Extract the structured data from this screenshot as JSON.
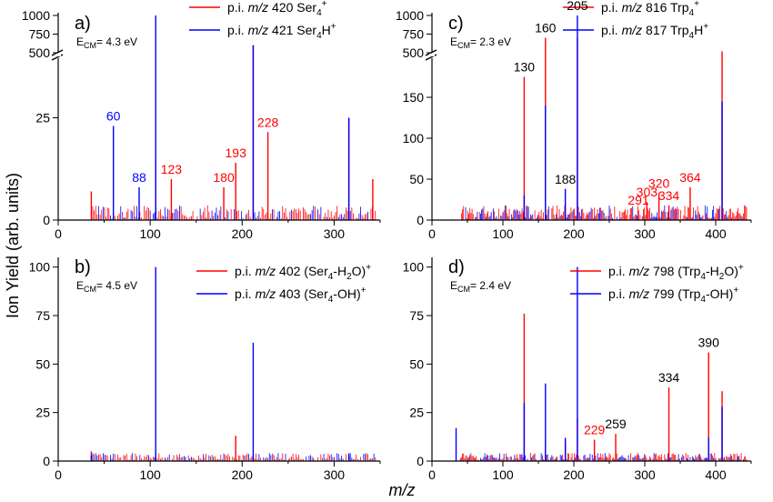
{
  "ylabel": "Ion Yield (arb. units)",
  "xlabel": "m/z",
  "colors": {
    "red": "#ff0000",
    "blue": "#0000ff"
  },
  "chart_data": [
    {
      "type": "bar",
      "panel": "a)",
      "ecm": "E CM= 4.3 eV",
      "ecm_main": "E",
      "ecm_sub": "CM",
      "ecm_rest": "= 4.3 eV",
      "xlim": [
        0,
        350
      ],
      "ylim_lower": [
        0,
        40
      ],
      "ylim_upper": [
        500,
        1000
      ],
      "xticks": [
        "0",
        "100",
        "200",
        "300"
      ],
      "yticks_lower": [
        "0",
        "25"
      ],
      "yticks_upper": [
        "500",
        "750",
        "1000"
      ],
      "legend": [
        {
          "prefix": "p.i. ",
          "mz": "m/z",
          "rest": " 420 Ser",
          "sub": "4",
          "sup": "+",
          "color": "red"
        },
        {
          "prefix": "p.i. ",
          "mz": "m/z",
          "rest": " 421 Ser",
          "sub": "4",
          "tail": "H",
          "sup": "+",
          "color": "blue"
        }
      ],
      "series": [
        {
          "name": "p.i. m/z 420 Ser4+",
          "color": "red",
          "x": [
            36,
            106,
            123,
            180,
            193,
            212,
            228,
            316,
            342
          ],
          "y": [
            7,
            15,
            10,
            8,
            14,
            600,
            21.5,
            25,
            10
          ]
        },
        {
          "name": "p.i. m/z 421 Ser4H+",
          "color": "blue",
          "x": [
            60,
            88,
            106,
            212,
            316
          ],
          "y": [
            23,
            8,
            1000,
            600,
            25
          ]
        }
      ],
      "annotations": [
        {
          "text": "60",
          "x": 60,
          "y": 23,
          "color": "blue"
        },
        {
          "text": "88",
          "x": 88,
          "y": 8,
          "color": "blue"
        },
        {
          "text": "123",
          "x": 123,
          "y": 10,
          "color": "red"
        },
        {
          "text": "180",
          "x": 180,
          "y": 8,
          "color": "red"
        },
        {
          "text": "193",
          "x": 193,
          "y": 14,
          "color": "red"
        },
        {
          "text": "228",
          "x": 228,
          "y": 21.5,
          "color": "red"
        }
      ]
    },
    {
      "type": "bar",
      "panel": "c)",
      "ecm_main": "E",
      "ecm_sub": "CM",
      "ecm_rest": "= 2.3 eV",
      "xlim": [
        0,
        450
      ],
      "ylim_lower": [
        0,
        200
      ],
      "ylim_upper": [
        500,
        1000
      ],
      "xticks": [
        "0",
        "100",
        "200",
        "300",
        "400"
      ],
      "yticks_lower": [
        "0",
        "50",
        "100",
        "150"
      ],
      "yticks_upper": [
        "500",
        "750",
        "1000"
      ],
      "legend": [
        {
          "prefix": "p.i. ",
          "mz": "m/z",
          "rest": " 816 Trp",
          "sub": "4",
          "sup": "+",
          "color": "red"
        },
        {
          "prefix": "p.i. ",
          "mz": "m/z",
          "rest": " 817 Trp",
          "sub": "4",
          "tail": "H",
          "sup": "+",
          "color": "blue"
        }
      ],
      "series": [
        {
          "name": "p.i. m/z 816 Trp4+",
          "color": "red",
          "x": [
            130,
            160,
            205,
            291,
            303,
            320,
            334,
            364,
            409
          ],
          "y": [
            175,
            700,
            700,
            12,
            22,
            33,
            18,
            40,
            520
          ]
        },
        {
          "name": "p.i. m/z 817 Trp4H+",
          "color": "blue",
          "x": [
            130,
            160,
            188,
            205,
            409
          ],
          "y": [
            30,
            140,
            38,
            1000,
            145
          ]
        }
      ],
      "annotations": [
        {
          "text": "205",
          "x": 205,
          "y": 1000,
          "color": "black"
        },
        {
          "text": "160",
          "x": 160,
          "y": 700,
          "color": "black"
        },
        {
          "text": "130",
          "x": 130,
          "y": 175,
          "color": "black"
        },
        {
          "text": "188",
          "x": 188,
          "y": 38,
          "color": "black"
        },
        {
          "text": "291",
          "x": 291,
          "y": 12,
          "color": "red"
        },
        {
          "text": "303",
          "x": 303,
          "y": 22,
          "color": "red"
        },
        {
          "text": "320",
          "x": 320,
          "y": 33,
          "color": "red"
        },
        {
          "text": "334",
          "x": 334,
          "y": 18,
          "color": "red"
        },
        {
          "text": "364",
          "x": 364,
          "y": 40,
          "color": "red"
        }
      ]
    },
    {
      "type": "bar",
      "panel": "b)",
      "ecm_main": "E",
      "ecm_sub": "CM",
      "ecm_rest": "= 4.5 eV",
      "xlim": [
        0,
        350
      ],
      "ylim": [
        0,
        105
      ],
      "xticks": [
        "0",
        "100",
        "200",
        "300"
      ],
      "yticks": [
        "0",
        "25",
        "50",
        "75",
        "100"
      ],
      "legend": [
        {
          "prefix": "p.i. ",
          "mz": "m/z",
          "rest": " 402 (Ser",
          "sub": "4",
          "tail": "-H",
          "sub2": "2",
          "tail2": "O)",
          "sup": "+",
          "color": "red"
        },
        {
          "prefix": "p.i. ",
          "mz": "m/z",
          "rest": " 403 (Ser",
          "sub": "4",
          "tail": "-OH)",
          "sup": "+",
          "color": "blue"
        }
      ],
      "series": [
        {
          "name": "p.i. m/z 402 (Ser4-H2O)+",
          "color": "red",
          "x": [
            36,
            106,
            193,
            212,
            316
          ],
          "y": [
            5,
            4,
            13,
            3,
            3
          ]
        },
        {
          "name": "p.i. m/z 403 (Ser4-OH)+",
          "color": "blue",
          "x": [
            36,
            106,
            212,
            316
          ],
          "y": [
            3,
            100,
            61,
            4
          ]
        }
      ],
      "annotations": []
    },
    {
      "type": "bar",
      "panel": "d)",
      "ecm_main": "E",
      "ecm_sub": "CM",
      "ecm_rest": "= 2.4 eV",
      "xlim": [
        0,
        450
      ],
      "ylim": [
        0,
        105
      ],
      "xticks": [
        "0",
        "100",
        "200",
        "300",
        "400"
      ],
      "yticks": [
        "0",
        "25",
        "50",
        "75",
        "100"
      ],
      "legend": [
        {
          "prefix": "p.i. ",
          "mz": "m/z",
          "rest": " 798 (Trp",
          "sub": "4",
          "tail": "-H",
          "sub2": "2",
          "tail2": "O)",
          "sup": "+",
          "color": "red"
        },
        {
          "prefix": "p.i. ",
          "mz": "m/z",
          "rest": " 799 (Trp",
          "sub": "4",
          "tail": "-OH)",
          "sup": "+",
          "color": "blue"
        }
      ],
      "series": [
        {
          "name": "p.i. m/z 798 (Trp4-H2O)+",
          "color": "red",
          "x": [
            130,
            160,
            188,
            205,
            229,
            259,
            334,
            390,
            409
          ],
          "y": [
            76,
            10,
            10,
            22,
            11,
            14,
            38,
            56,
            36
          ]
        },
        {
          "name": "p.i. m/z 799 (Trp4-OH)+",
          "color": "blue",
          "x": [
            34,
            130,
            160,
            188,
            205,
            390,
            409
          ],
          "y": [
            17,
            30,
            40,
            12,
            100,
            12,
            28
          ]
        }
      ],
      "annotations": [
        {
          "text": "390",
          "x": 390,
          "y": 56,
          "color": "black"
        },
        {
          "text": "334",
          "x": 334,
          "y": 38,
          "color": "black"
        },
        {
          "text": "229",
          "x": 229,
          "y": 11,
          "color": "red"
        },
        {
          "text": "259",
          "x": 259,
          "y": 14,
          "color": "black"
        }
      ]
    }
  ]
}
